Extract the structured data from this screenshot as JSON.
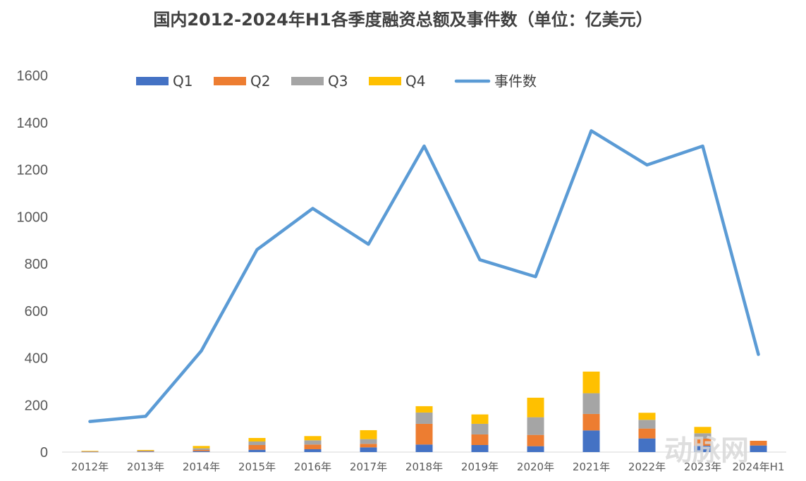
{
  "chart_data": {
    "type": "bar",
    "title": "国内2012-2024年H1各季度融资总额及事件数（单位：亿美元）",
    "categories": [
      "2012年",
      "2013年",
      "2014年",
      "2015年",
      "2016年",
      "2017年",
      "2018年",
      "2019年",
      "2020年",
      "2021年",
      "2022年",
      "2023年",
      "2024年H1"
    ],
    "ylim": [
      0,
      1600
    ],
    "yticks": [
      0,
      200,
      400,
      600,
      800,
      1000,
      1200,
      1400,
      1600
    ],
    "legend_position": "top",
    "grid": false,
    "series": [
      {
        "name": "Q1",
        "type": "bar",
        "stack": "total",
        "color": "#4472c4",
        "values": [
          1,
          2,
          4,
          10,
          12,
          20,
          32,
          30,
          25,
          92,
          58,
          27,
          28
        ]
      },
      {
        "name": "Q2",
        "type": "bar",
        "stack": "total",
        "color": "#ed7d31",
        "values": [
          1,
          2,
          5,
          20,
          20,
          15,
          88,
          45,
          48,
          70,
          42,
          30,
          20
        ]
      },
      {
        "name": "Q3",
        "type": "bar",
        "stack": "total",
        "color": "#a5a5a5",
        "values": [
          1,
          2,
          7,
          15,
          18,
          20,
          48,
          45,
          75,
          88,
          37,
          23,
          0
        ]
      },
      {
        "name": "Q4",
        "type": "bar",
        "stack": "total",
        "color": "#ffc000",
        "values": [
          2,
          3,
          10,
          15,
          18,
          38,
          27,
          40,
          83,
          92,
          30,
          27,
          0
        ]
      },
      {
        "name": "事件数",
        "type": "line",
        "color": "#5b9bd5",
        "values": [
          130,
          152,
          430,
          860,
          1035,
          883,
          1300,
          817,
          745,
          1365,
          1220,
          1300,
          415
        ]
      }
    ]
  },
  "watermark": "动脉网"
}
